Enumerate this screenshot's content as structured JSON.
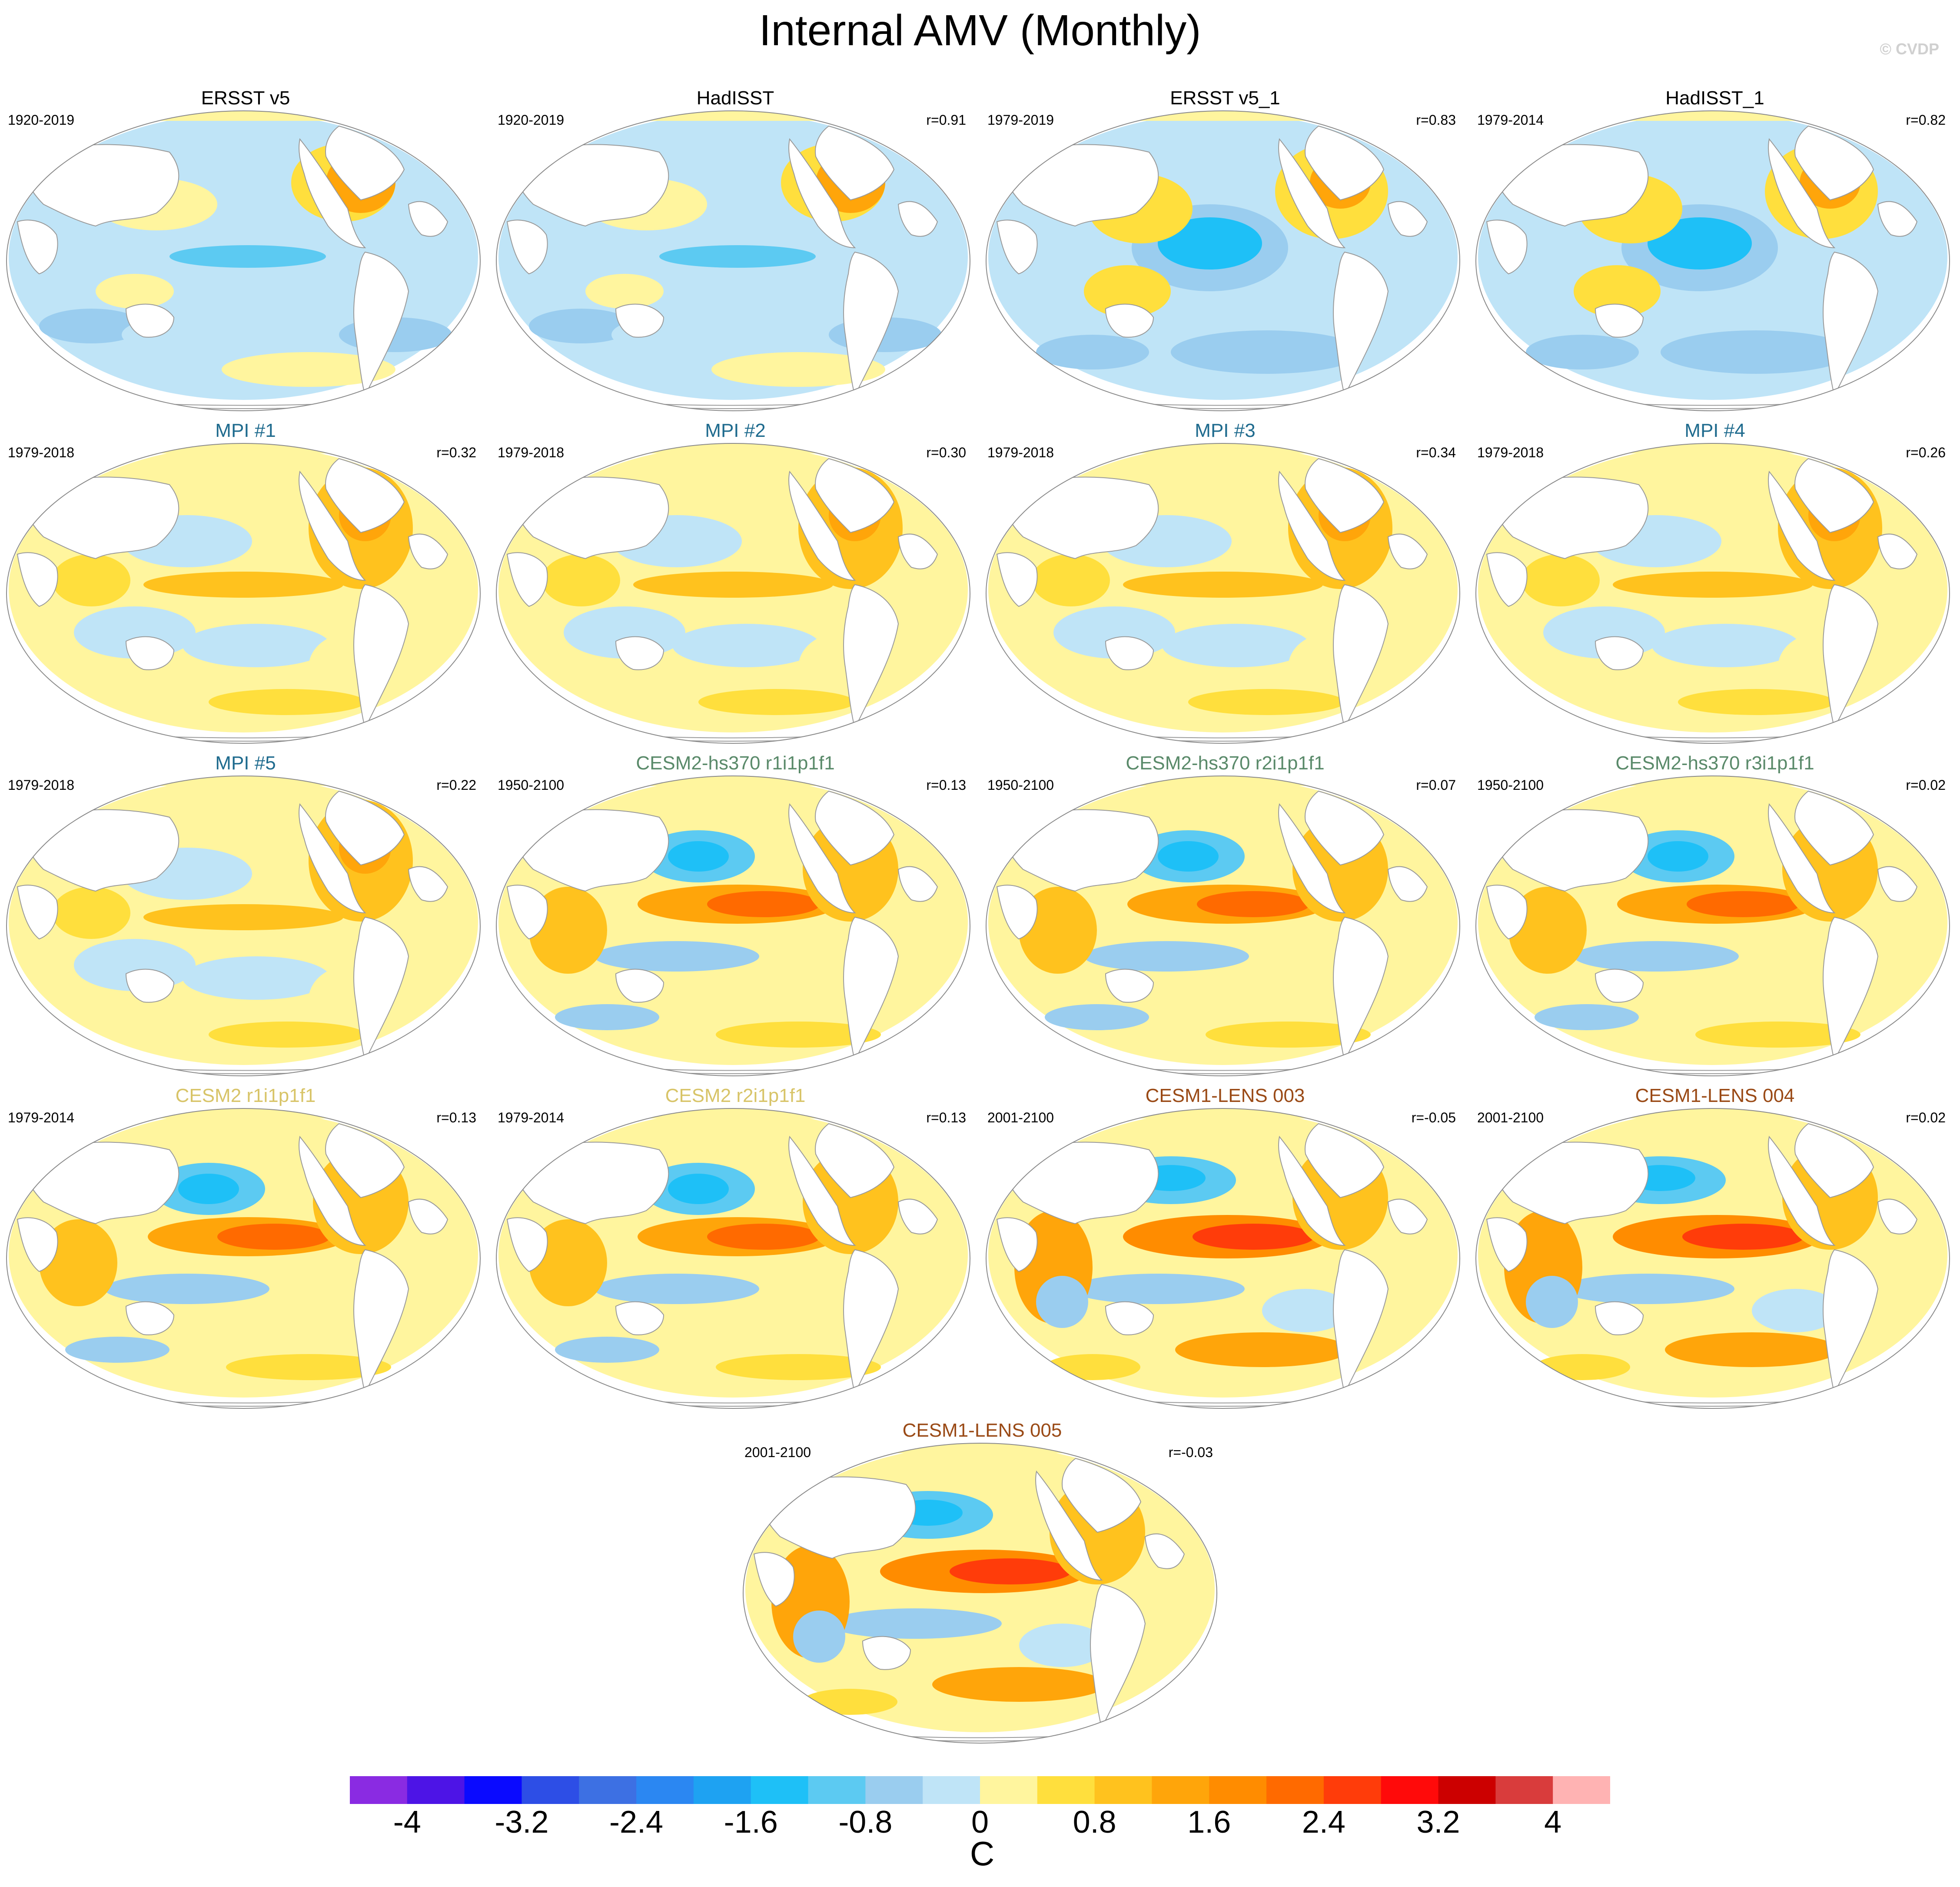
{
  "title": "Internal AMV (Monthly)",
  "copyright": "© CVDP",
  "colors": {
    "land": "#ffffff",
    "coast": "#9a9a9a",
    "obs_title": "#000000",
    "mpi_title": "#1f6b8e",
    "cesm2_hs370_title": "#5a8a6a",
    "cesm2_title": "#d8c468",
    "cesm1_lens_title": "#9a4a16"
  },
  "panels": [
    {
      "title": "ERSST v5",
      "period": "1920-2019",
      "r": "",
      "group": "obs_title",
      "pattern": "obs_long"
    },
    {
      "title": "HadISST",
      "period": "1920-2019",
      "r": "r=0.91",
      "group": "obs_title",
      "pattern": "obs_long"
    },
    {
      "title": "ERSST v5_1",
      "period": "1979-2019",
      "r": "r=0.83",
      "group": "obs_title",
      "pattern": "obs_short"
    },
    {
      "title": "HadISST_1",
      "period": "1979-2014",
      "r": "r=0.82",
      "group": "obs_title",
      "pattern": "obs_short"
    },
    {
      "title": "MPI #1",
      "period": "1979-2018",
      "r": "r=0.32",
      "group": "mpi_title",
      "pattern": "mpi"
    },
    {
      "title": "MPI #2",
      "period": "1979-2018",
      "r": "r=0.30",
      "group": "mpi_title",
      "pattern": "mpi"
    },
    {
      "title": "MPI #3",
      "period": "1979-2018",
      "r": "r=0.34",
      "group": "mpi_title",
      "pattern": "mpi"
    },
    {
      "title": "MPI #4",
      "period": "1979-2018",
      "r": "r=0.26",
      "group": "mpi_title",
      "pattern": "mpi"
    },
    {
      "title": "MPI #5",
      "period": "1979-2018",
      "r": "r=0.22",
      "group": "mpi_title",
      "pattern": "mpi"
    },
    {
      "title": "CESM2-hs370 r1i1p1f1",
      "period": "1950-2100",
      "r": "r=0.13",
      "group": "cesm2_hs370_title",
      "pattern": "cesm"
    },
    {
      "title": "CESM2-hs370 r2i1p1f1",
      "period": "1950-2100",
      "r": "r=0.07",
      "group": "cesm2_hs370_title",
      "pattern": "cesm"
    },
    {
      "title": "CESM2-hs370 r3i1p1f1",
      "period": "1950-2100",
      "r": "r=0.02",
      "group": "cesm2_hs370_title",
      "pattern": "cesm"
    },
    {
      "title": "CESM2 r1i1p1f1",
      "period": "1979-2014",
      "r": "r=0.13",
      "group": "cesm2_title",
      "pattern": "cesm"
    },
    {
      "title": "CESM2 r2i1p1f1",
      "period": "1979-2014",
      "r": "r=0.13",
      "group": "cesm2_title",
      "pattern": "cesm"
    },
    {
      "title": "CESM1-LENS 003",
      "period": "2001-2100",
      "r": "r=-0.05",
      "group": "cesm1_lens_title",
      "pattern": "lens"
    },
    {
      "title": "CESM1-LENS 004",
      "period": "2001-2100",
      "r": "r=0.02",
      "group": "cesm1_lens_title",
      "pattern": "lens"
    },
    {
      "title": "CESM1-LENS 005",
      "period": "2001-2100",
      "r": "r=-0.03",
      "group": "cesm1_lens_title",
      "pattern": "lens"
    }
  ],
  "colorbar": {
    "colors": [
      "#8a2be2",
      "#4d14e6",
      "#0a0aff",
      "#2d4ee6",
      "#3d70e3",
      "#2b87f2",
      "#1ea2f2",
      "#1ec0f7",
      "#5ccaf2",
      "#9acdef",
      "#bfe4f7",
      "#fff59e",
      "#ffdf3d",
      "#ffc21e",
      "#ffa50a",
      "#ff8c00",
      "#ff6a00",
      "#ff3c0a",
      "#ff0a0a",
      "#cc0000",
      "#d93c3c",
      "#ffb3b3"
    ],
    "labels": [
      "-4",
      "-3.2",
      "-2.4",
      "-1.6",
      "-0.8",
      "0",
      "0.8",
      "1.6",
      "2.4",
      "3.2",
      "4"
    ],
    "units": "C"
  }
}
